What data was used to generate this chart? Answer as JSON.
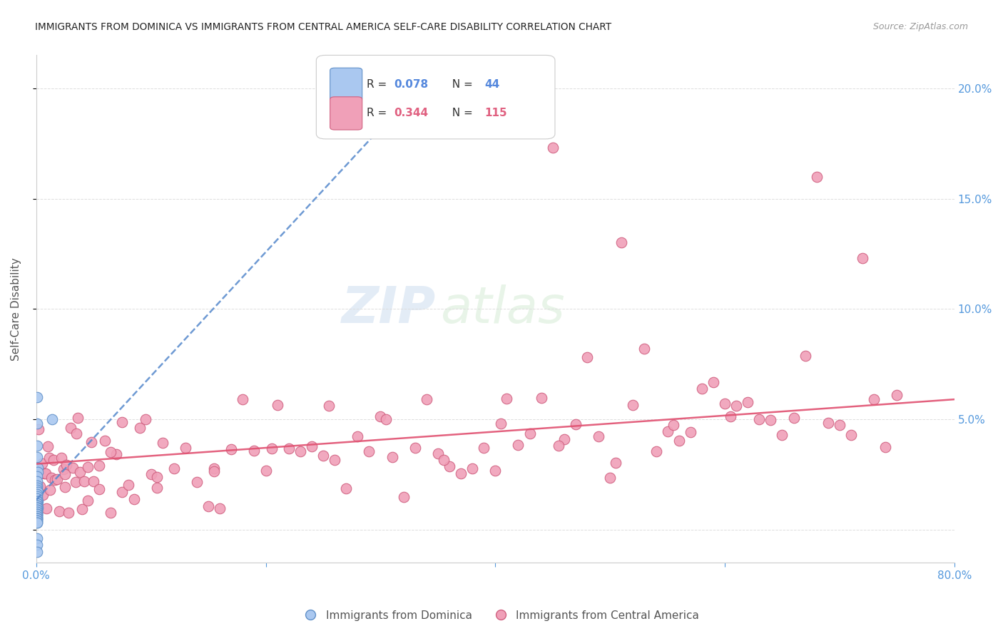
{
  "title": "IMMIGRANTS FROM DOMINICA VS IMMIGRANTS FROM CENTRAL AMERICA SELF-CARE DISABILITY CORRELATION CHART",
  "source": "Source: ZipAtlas.com",
  "ylabel_label": "Self-Care Disability",
  "xlim": [
    0.0,
    0.8
  ],
  "ylim": [
    -0.015,
    0.215
  ],
  "watermark_zip": "ZIP",
  "watermark_atlas": "atlas",
  "series1_color": "#aac8f0",
  "series1_edge": "#6090c8",
  "series2_color": "#f0a0b8",
  "series2_edge": "#d06080",
  "trendline1_color": "#5588cc",
  "trendline2_color": "#e05070",
  "grid_color": "#dddddd",
  "title_color": "#222222",
  "source_color": "#999999",
  "tick_color": "#5599dd",
  "ylabel_color": "#555555",
  "legend_r1": "R = 0.078",
  "legend_n1": "N = 44",
  "legend_r2": "R = 0.344",
  "legend_n2": "N = 115",
  "r1_color": "#5588dd",
  "n1_color": "#5588dd",
  "r2_color": "#e06080",
  "n2_color": "#e06080"
}
